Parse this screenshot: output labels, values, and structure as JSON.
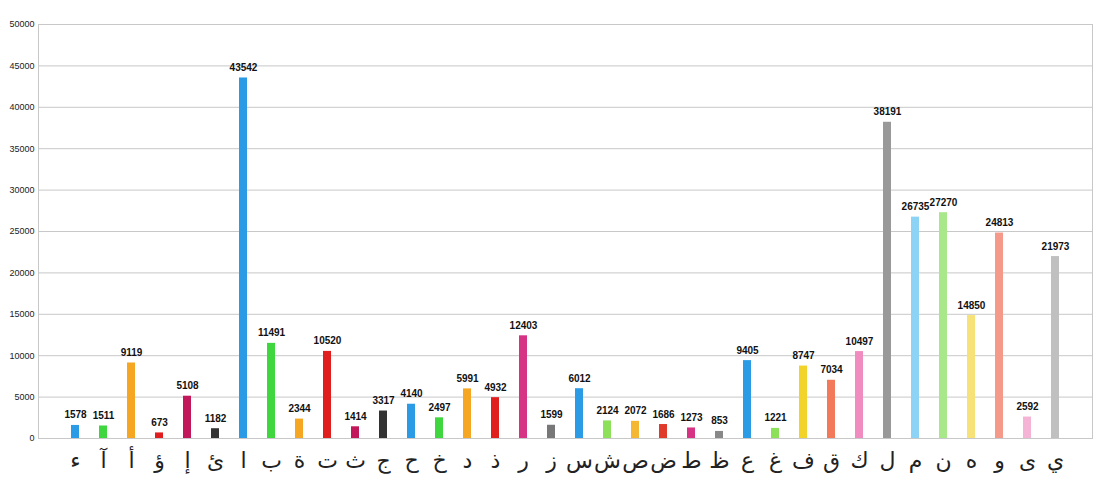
{
  "chart_data": {
    "type": "bar",
    "categories": [
      "ء",
      "آ",
      "أ",
      "ؤ",
      "إ",
      "ئ",
      "ا",
      "ب",
      "ة",
      "ت",
      "ث",
      "ج",
      "ح",
      "خ",
      "د",
      "ذ",
      "ر",
      "ز",
      "س",
      "ش",
      "ص",
      "ض",
      "ط",
      "ظ",
      "ع",
      "غ",
      "ف",
      "ق",
      "ك",
      "ل",
      "م",
      "ن",
      "ه",
      "و",
      "ى",
      "ي"
    ],
    "values": [
      1578,
      1511,
      9119,
      673,
      5108,
      1182,
      43542,
      11491,
      2344,
      10520,
      1414,
      3317,
      4140,
      2497,
      5991,
      4932,
      12403,
      1599,
      6012,
      2124,
      2072,
      1686,
      1273,
      853,
      9405,
      1221,
      8747,
      7034,
      10497,
      38191,
      26735,
      27270,
      14850,
      24813,
      2592,
      21973
    ],
    "colors": [
      "#2b9be6",
      "#3fd63f",
      "#f5a623",
      "#e01e1e",
      "#c2185b",
      "#333333",
      "#2b9be6",
      "#3fd63f",
      "#f5a623",
      "#e01e1e",
      "#c2185b",
      "#333333",
      "#2b9be6",
      "#3fd63f",
      "#f5a623",
      "#e01e1e",
      "#d63384",
      "#777777",
      "#2b9be6",
      "#8de05a",
      "#f5b731",
      "#e03a2a",
      "#d63384",
      "#888888",
      "#2b9be6",
      "#8de05a",
      "#f2d32a",
      "#f27a5a",
      "#f08cc0",
      "#999999",
      "#8cd3f5",
      "#a8e88a",
      "#f7e27a",
      "#f59a8a",
      "#f5b3d6",
      "#c0c0c0"
    ],
    "ylim": [
      0,
      50000
    ],
    "yticks": [
      0,
      5000,
      10000,
      15000,
      20000,
      25000,
      30000,
      35000,
      40000,
      45000,
      50000
    ],
    "grid": true,
    "data_labels": true
  }
}
